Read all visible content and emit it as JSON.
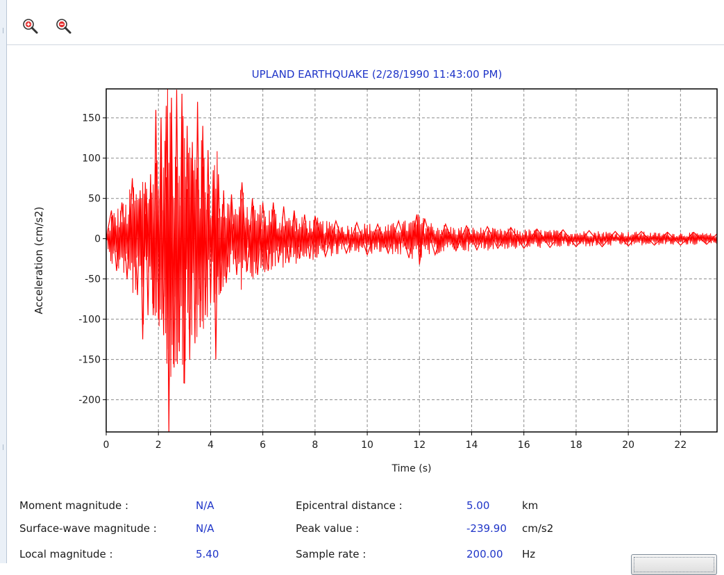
{
  "toolbar": {
    "zoom_in": {
      "icon": "zoom-in-icon"
    },
    "zoom_out": {
      "icon": "zoom-out-icon"
    }
  },
  "chart_data": {
    "type": "line",
    "title": "UPLAND EARTHQUAKE (2/28/1990 11:43:00 PM)",
    "xlabel": "Time (s)",
    "ylabel": "Acceleration (cm/s2)",
    "xlim": [
      0,
      23.4
    ],
    "ylim": [
      -240,
      186
    ],
    "xticks": [
      0,
      2,
      4,
      6,
      8,
      10,
      12,
      14,
      16,
      18,
      20,
      22
    ],
    "yticks": [
      150,
      100,
      50,
      0,
      -50,
      -100,
      -150,
      -200
    ],
    "grid": true,
    "line_color": "#ff0000",
    "title_color": "#1f35c8",
    "series": [
      {
        "x": [
          0,
          0.2,
          0.4,
          0.6,
          0.8,
          1.0,
          1.2,
          1.3,
          1.4,
          1.5,
          1.6,
          1.7,
          1.8,
          1.9,
          2.0,
          2.1,
          2.2,
          2.3,
          2.4,
          2.5,
          2.6,
          2.7,
          2.8,
          2.9,
          3.0,
          3.1,
          3.2,
          3.3,
          3.4,
          3.5,
          3.6,
          3.7,
          3.8,
          3.9,
          4.0,
          4.1,
          4.2,
          4.3,
          4.4,
          4.5,
          4.6,
          4.8,
          5.0,
          5.2,
          5.4,
          5.6,
          5.8,
          6.0,
          6.2,
          6.4,
          6.6,
          6.8,
          7.0,
          7.2,
          7.4,
          7.6,
          7.8,
          8.0,
          8.4,
          8.8,
          9.2,
          9.6,
          10.0,
          10.4,
          10.8,
          11.2,
          11.6,
          11.9,
          12.0,
          12.2,
          12.6,
          13.0,
          13.4,
          13.8,
          14.2,
          14.6,
          15.0,
          15.5,
          16.0,
          16.5,
          17.0,
          17.5,
          18.0,
          18.5,
          19.0,
          19.5,
          20.0,
          20.5,
          21.0,
          21.5,
          22.0,
          22.5,
          23.0,
          23.4
        ],
        "y": [
          0,
          35,
          -40,
          45,
          -50,
          75,
          -70,
          60,
          -125,
          70,
          -95,
          80,
          -95,
          160,
          -100,
          150,
          -120,
          165,
          -239.9,
          175,
          -160,
          185,
          -140,
          180,
          -180,
          140,
          -150,
          120,
          -130,
          170,
          -110,
          140,
          -95,
          110,
          -80,
          85,
          -150,
          80,
          -65,
          60,
          -55,
          55,
          -45,
          70,
          -40,
          50,
          -45,
          45,
          -40,
          45,
          -30,
          40,
          -30,
          35,
          -25,
          30,
          -25,
          28,
          -22,
          22,
          -18,
          20,
          -20,
          18,
          -18,
          22,
          -24,
          30,
          -32,
          25,
          -20,
          18,
          -15,
          16,
          -14,
          15,
          -12,
          14,
          -12,
          12,
          -11,
          11,
          -10,
          10,
          -10,
          9,
          -9,
          9,
          -8,
          8,
          -8,
          8,
          -7,
          6
        ]
      }
    ]
  },
  "info": {
    "moment_magnitude": {
      "label": "Moment magnitude :",
      "value": "N/A"
    },
    "surface_wave_magnitude": {
      "label": "Surface-wave magnitude :",
      "value": "N/A"
    },
    "local_magnitude": {
      "label": "Local magnitude :",
      "value": "5.40"
    },
    "epicentral_distance": {
      "label": "Epicentral distance :",
      "value": "5.00",
      "unit": "km"
    },
    "peak_value": {
      "label": "Peak value :",
      "value": "-239.90",
      "unit": "cm/s2"
    },
    "sample_rate": {
      "label": "Sample rate :",
      "value": "200.00",
      "unit": "Hz"
    }
  }
}
